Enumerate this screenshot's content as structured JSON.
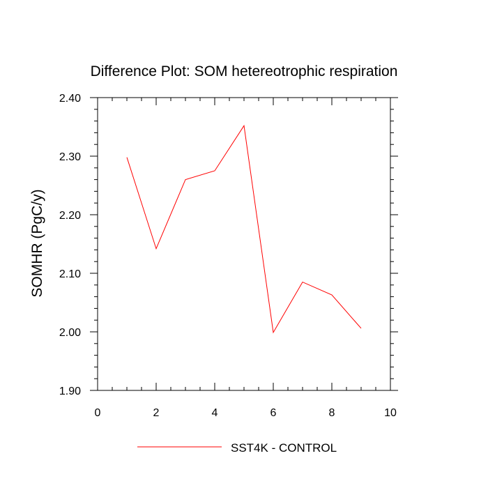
{
  "chart_data": {
    "type": "line",
    "title": "Difference Plot: SOM hetereotrophic respiration",
    "xlabel": "",
    "ylabel": "SOMHR  (PgC/y)",
    "xlim": [
      0,
      10
    ],
    "ylim": [
      1.9,
      2.4
    ],
    "x_major_ticks": [
      0,
      2,
      4,
      6,
      8,
      10
    ],
    "x_tick_labels": [
      "0",
      "2",
      "4",
      "6",
      "8",
      "10"
    ],
    "y_major_ticks": [
      1.9,
      2.0,
      2.1,
      2.2,
      2.3,
      2.4
    ],
    "y_tick_labels": [
      "1.90",
      "2.00",
      "2.10",
      "2.20",
      "2.30",
      "2.40"
    ],
    "grid": false,
    "legend_position": "bottom-center",
    "series": [
      {
        "name": "SST4K - CONTROL",
        "color": "#ff0000",
        "x": [
          1,
          2,
          3,
          4,
          5,
          6,
          7,
          8,
          9
        ],
        "y": [
          2.298,
          2.142,
          2.26,
          2.275,
          2.352,
          1.999,
          2.085,
          2.063,
          2.006
        ]
      }
    ]
  }
}
